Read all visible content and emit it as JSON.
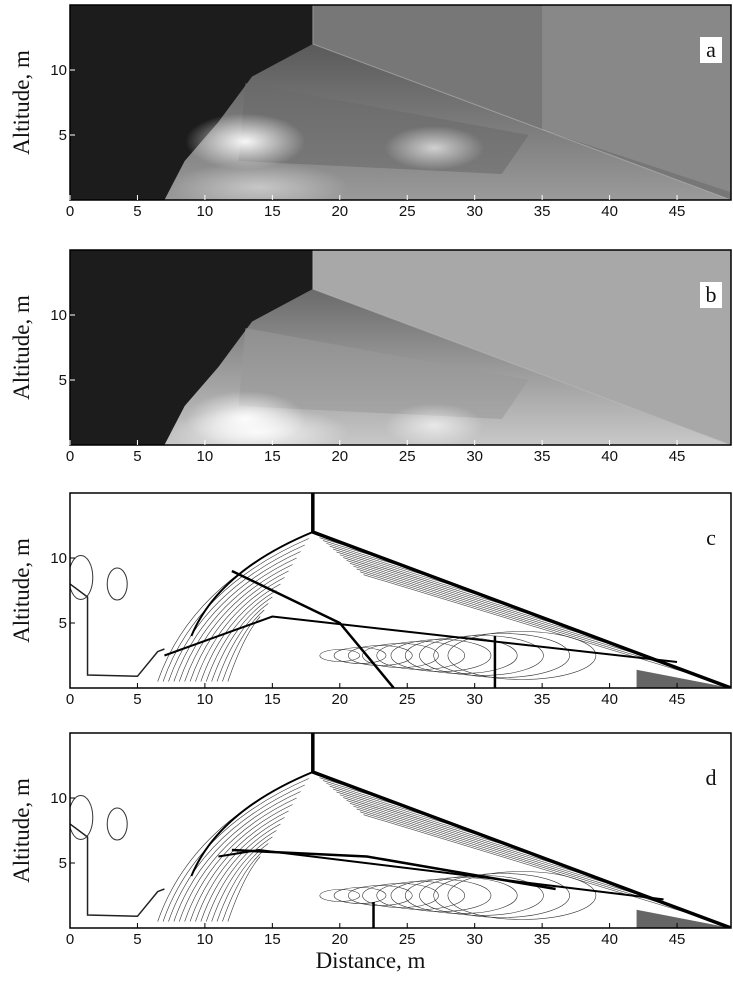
{
  "chart_data": [
    {
      "type": "field",
      "label": "a",
      "ylabel": "Altitude,  m",
      "xlim": [
        0,
        49
      ],
      "ylim": [
        0,
        15
      ],
      "xticks": [
        0,
        5,
        10,
        15,
        20,
        25,
        30,
        35,
        40,
        45
      ],
      "yticks": [
        5,
        10
      ],
      "style": "shaded-dark"
    },
    {
      "type": "field",
      "label": "b",
      "ylabel": "Altitude,  m",
      "xlim": [
        0,
        49
      ],
      "ylim": [
        0,
        15
      ],
      "xticks": [
        0,
        5,
        10,
        15,
        20,
        25,
        30,
        35,
        40,
        45
      ],
      "yticks": [
        5,
        10
      ],
      "style": "shaded-light"
    },
    {
      "type": "field",
      "label": "c",
      "ylabel": "Altitude,  m",
      "xlim": [
        0,
        49
      ],
      "ylim": [
        0,
        15
      ],
      "xticks": [
        0,
        5,
        10,
        15,
        20,
        25,
        30,
        35,
        40,
        45
      ],
      "yticks": [
        5,
        10
      ],
      "style": "contour"
    },
    {
      "type": "field",
      "label": "d",
      "ylabel": "Altitude,  m",
      "xlabel": "Distance,  m",
      "xlim": [
        0,
        49
      ],
      "ylim": [
        0,
        15
      ],
      "xticks": [
        0,
        5,
        10,
        15,
        20,
        25,
        30,
        35,
        40,
        45
      ],
      "yticks": [
        5,
        10
      ],
      "style": "contour"
    }
  ]
}
